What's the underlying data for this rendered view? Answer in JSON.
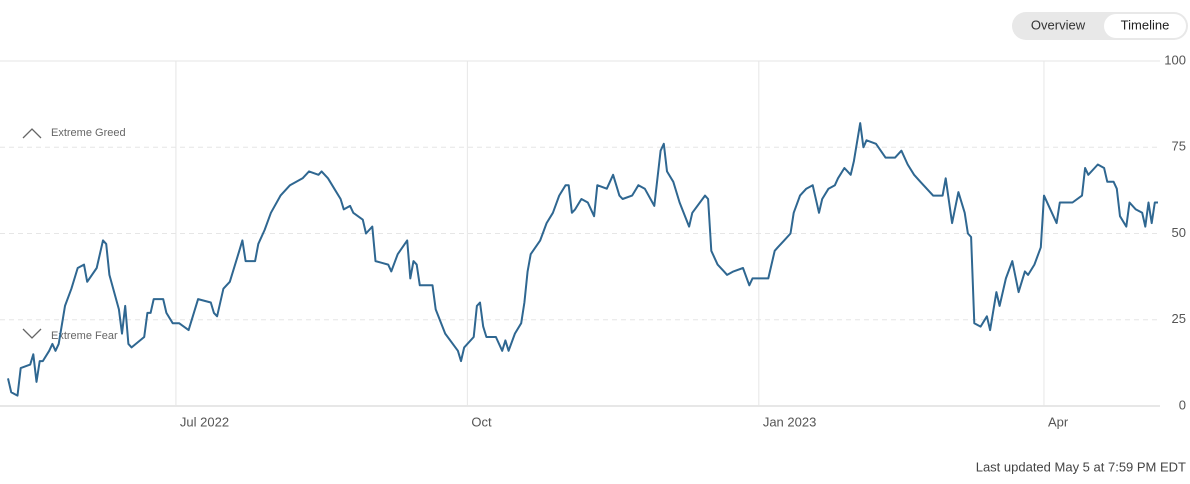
{
  "chart_data": {
    "type": "line",
    "controls": [
      "Overview",
      "Timeline"
    ],
    "annotations": [
      "Extreme Greed",
      "Extreme Fear"
    ],
    "footer": "Last updated May 5 at 7:59 PM EDT",
    "x": [
      0,
      1,
      3,
      4,
      7,
      8,
      9,
      10,
      11,
      13,
      14,
      15,
      16,
      18,
      20,
      22,
      24,
      25,
      28,
      30,
      31,
      32,
      35,
      36,
      37,
      38,
      39,
      43,
      44,
      45,
      46,
      49,
      50,
      52,
      54,
      57,
      60,
      64,
      65,
      66,
      68,
      70,
      73,
      74,
      75,
      78,
      79,
      81,
      83,
      86,
      88,
      89,
      91,
      93,
      95,
      98,
      99,
      101,
      103,
      105,
      106,
      108,
      109,
      112,
      113,
      115,
      116,
      120,
      121,
      123,
      126,
      127,
      128,
      129,
      130,
      134,
      135,
      138,
      142,
      143,
      144,
      147,
      148,
      149,
      150,
      151,
      154,
      156,
      157,
      158,
      160,
      162,
      163,
      164,
      165,
      168,
      170,
      172,
      174,
      176,
      177,
      178,
      179,
      181,
      183,
      185,
      186,
      189,
      191,
      193,
      194,
      197,
      199,
      201,
      204,
      206,
      207,
      208,
      210,
      212,
      215,
      216,
      220,
      221,
      222,
      224,
      226,
      227,
      229,
      232,
      234,
      235,
      237,
      240,
      242,
      243,
      245,
      247,
      248,
      250,
      252,
      254,
      256,
      257,
      259,
      261,
      262,
      264,
      266,
      267,
      269,
      270,
      271,
      274,
      277,
      280,
      282,
      284,
      286,
      288,
      292,
      295,
      296,
      298,
      300,
      302,
      303,
      304,
      305,
      307,
      309,
      310,
      312,
      313,
      315,
      317,
      319,
      321,
      322,
      324,
      326,
      327,
      331,
      332,
      336,
      339,
      340,
      341,
      343,
      344,
      346,
      347,
      349,
      350,
      351,
      353,
      354,
      356,
      358,
      359,
      360,
      361,
      362,
      363
    ],
    "values": [
      8,
      4,
      3,
      11,
      12,
      15,
      7,
      13,
      13,
      16,
      18,
      16,
      18,
      29,
      34,
      40,
      41,
      36,
      40,
      48,
      47,
      38,
      28,
      21,
      29,
      18,
      17,
      20,
      27,
      27,
      31,
      31,
      27,
      24,
      24,
      22,
      31,
      30,
      27,
      26,
      34,
      36,
      45,
      48,
      42,
      42,
      47,
      51,
      56,
      61,
      63,
      64,
      65,
      66,
      68,
      67,
      68,
      66,
      63,
      60,
      57,
      58,
      56,
      54,
      50,
      52,
      42,
      41,
      39,
      44,
      48,
      37,
      42,
      41,
      35,
      35,
      28,
      21,
      16,
      13,
      17,
      20,
      29,
      30,
      23,
      20,
      20,
      16,
      19,
      16,
      21,
      24,
      30,
      39,
      44,
      48,
      53,
      56,
      61,
      64,
      64,
      56,
      57,
      60,
      59,
      55,
      64,
      63,
      67,
      61,
      60,
      61,
      64,
      63,
      58,
      74,
      76,
      68,
      65,
      59,
      52,
      56,
      61,
      60,
      45,
      41,
      39,
      38,
      39,
      40,
      35,
      37,
      37,
      37,
      45,
      46,
      48,
      50,
      56,
      61,
      63,
      64,
      56,
      60,
      63,
      64,
      66,
      69,
      67,
      71,
      82,
      75,
      77,
      76,
      72,
      72,
      74,
      70,
      67,
      65,
      61,
      61,
      66,
      53,
      62,
      56,
      50,
      49,
      24,
      23,
      26,
      22,
      33,
      29,
      37,
      42,
      33,
      39,
      38,
      41,
      46,
      61,
      53,
      59,
      59,
      61,
      69,
      67,
      69,
      70,
      69,
      65,
      65,
      63,
      55,
      52,
      59,
      57,
      56,
      52,
      59,
      53,
      59,
      59
    ],
    "color": "#2f6791",
    "xlim": [
      0,
      363
    ],
    "xticks": [
      {
        "value": 53,
        "label": "Jul 2022"
      },
      {
        "value": 145,
        "label": "Oct"
      },
      {
        "value": 237,
        "label": "Jan 2023"
      },
      {
        "value": 327,
        "label": "Apr"
      }
    ],
    "ylim": [
      0,
      100
    ],
    "yticks": [
      0,
      25,
      50,
      75,
      100
    ],
    "grid": true
  }
}
